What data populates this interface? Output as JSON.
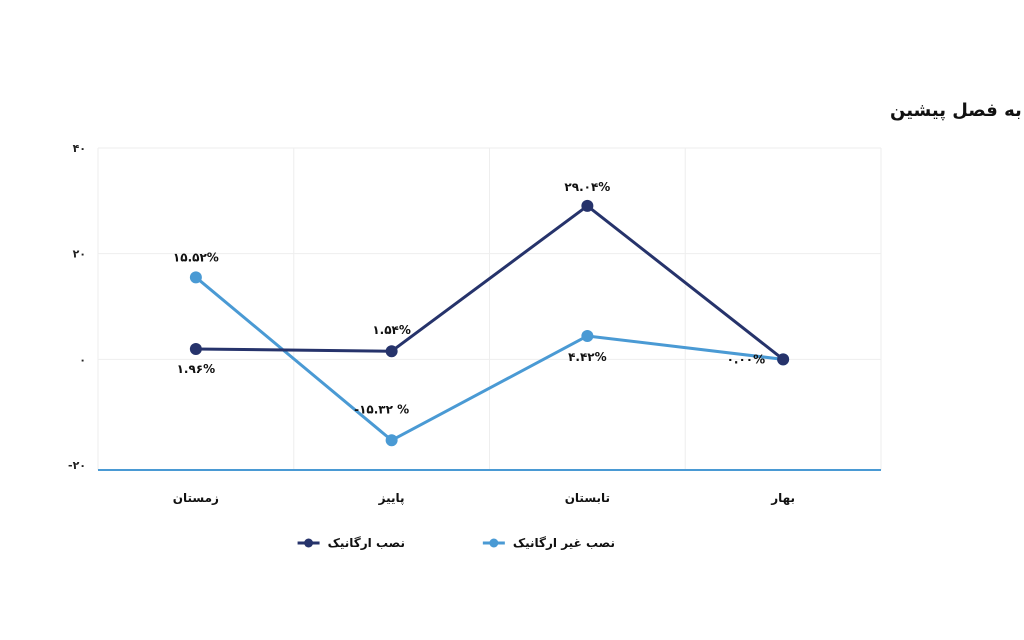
{
  "chart_data": {
    "type": "line",
    "title": "روند تغییرات نصب‌های ارگانیک و غیر ارگانیک نسبت به فصل پیشین",
    "xlabel": "",
    "ylabel": "",
    "categories": [
      "بهار",
      "تابستان",
      "پاییز",
      "زمستان"
    ],
    "ylim": [
      -20,
      40
    ],
    "yticks": [
      40,
      20,
      0,
      -20
    ],
    "ytick_labels": [
      "۴۰",
      "۲۰",
      "۰",
      "-۲۰"
    ],
    "grid": true,
    "legend": "bottom",
    "series": [
      {
        "name": "نصب ارگانیک",
        "color": "#26336b",
        "values": [
          0,
          29.04,
          1.54,
          1.96
        ],
        "labels": [
          "",
          "۲۹.۰۴%",
          "۱.۵۴%",
          "۱.۹۶%"
        ]
      },
      {
        "name": "نصب غیر ارگانیک",
        "color": "#4a9ad4",
        "values": [
          0,
          4.42,
          -15.32,
          15.52
        ],
        "labels": [
          "۰.۰۰%",
          "۴.۴۲%",
          "-۱۵.۳۲ %",
          "۱۵.۵۲%"
        ]
      }
    ]
  }
}
